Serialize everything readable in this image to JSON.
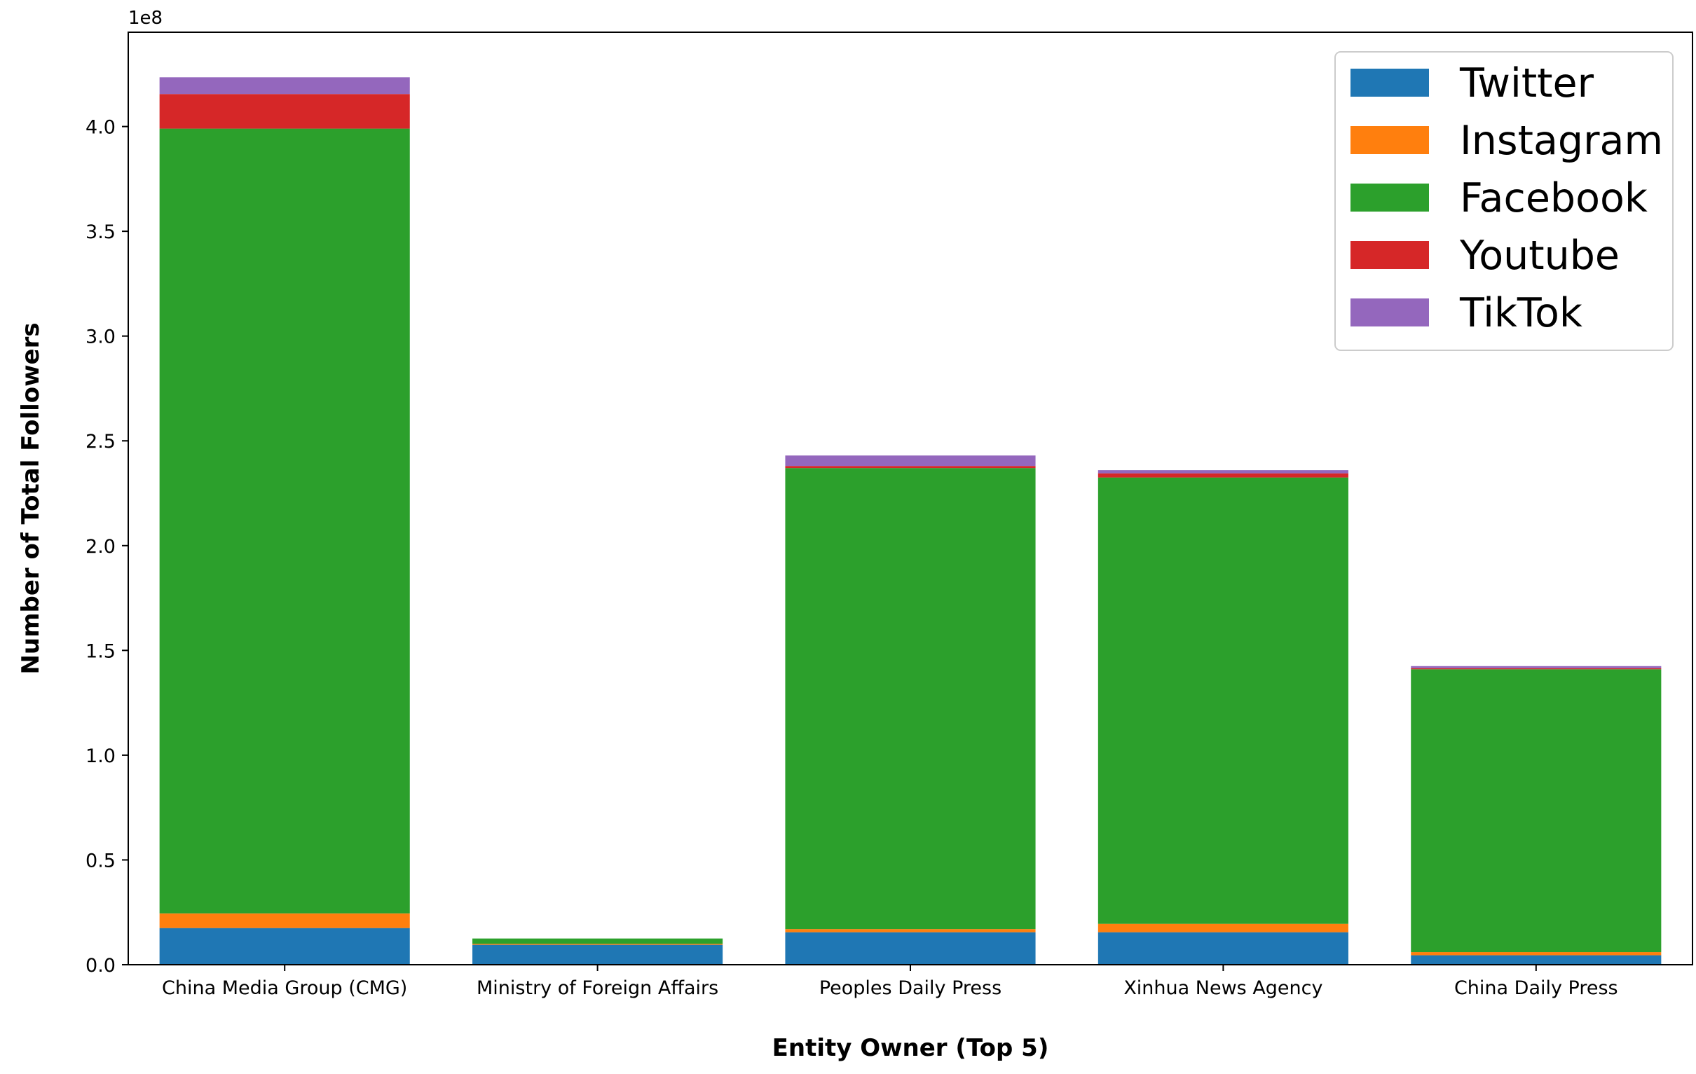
{
  "chart_data": {
    "type": "bar",
    "stacked": true,
    "xlabel": "Entity Owner (Top 5)",
    "ylabel": "Number of Total Followers",
    "offset_text": "1e8",
    "ylim": [
      0,
      445000000
    ],
    "yticks": [
      0,
      50000000,
      100000000,
      150000000,
      200000000,
      250000000,
      300000000,
      350000000,
      400000000
    ],
    "ytick_labels": [
      "0.0",
      "0.5",
      "1.0",
      "1.5",
      "2.0",
      "2.5",
      "3.0",
      "3.5",
      "4.0"
    ],
    "grid": false,
    "legend_position": "top-right",
    "categories": [
      "China Media Group (CMG)",
      "Ministry of Foreign Affairs",
      "Peoples Daily Press",
      "Xinhua News Agency",
      "China Daily Press"
    ],
    "series": [
      {
        "name": "Twitter",
        "color": "#1f77b4",
        "values": [
          17500000,
          9500000,
          15500000,
          15500000,
          4500000
        ]
      },
      {
        "name": "Instagram",
        "color": "#ff7f0e",
        "values": [
          7000000,
          500000,
          1500000,
          4000000,
          1500000
        ]
      },
      {
        "name": "Facebook",
        "color": "#2ca02c",
        "values": [
          374500000,
          2500000,
          220000000,
          213000000,
          135000000
        ]
      },
      {
        "name": "Youtube",
        "color": "#d62728",
        "values": [
          16500000,
          0,
          1000000,
          2000000,
          500000
        ]
      },
      {
        "name": "TikTok",
        "color": "#9467bd",
        "values": [
          8000000,
          0,
          5000000,
          1500000,
          1000000
        ]
      }
    ]
  }
}
